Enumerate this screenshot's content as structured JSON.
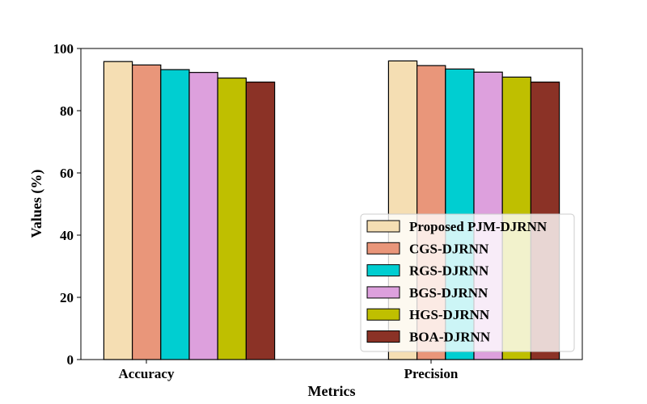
{
  "chart_data": {
    "type": "bar",
    "title": "",
    "xlabel": "Metrics",
    "ylabel": "Values (%)",
    "ylim": [
      0,
      100
    ],
    "yticks": [
      "0",
      "20",
      "40",
      "60",
      "80",
      "100"
    ],
    "categories": [
      "Accuracy",
      "Precision"
    ],
    "series": [
      {
        "name": "Proposed PJM-DJRNN",
        "color": "#F5DEB3",
        "values": [
          95.8,
          96.0
        ]
      },
      {
        "name": "CGS-DJRNN",
        "color": "#E9967A",
        "values": [
          94.7,
          94.5
        ]
      },
      {
        "name": "RGS-DJRNN",
        "color": "#00CED1",
        "values": [
          93.2,
          93.4
        ]
      },
      {
        "name": "BGS-DJRNN",
        "color": "#DDA0DD",
        "values": [
          92.3,
          92.4
        ]
      },
      {
        "name": "HGS-DJRNN",
        "color": "#BFBF00",
        "values": [
          90.5,
          90.8
        ]
      },
      {
        "name": "BOA-DJRNN",
        "color": "#8B3226",
        "values": [
          89.2,
          89.2
        ]
      }
    ],
    "legend": {
      "placement": "lower-right"
    },
    "grid": false
  }
}
